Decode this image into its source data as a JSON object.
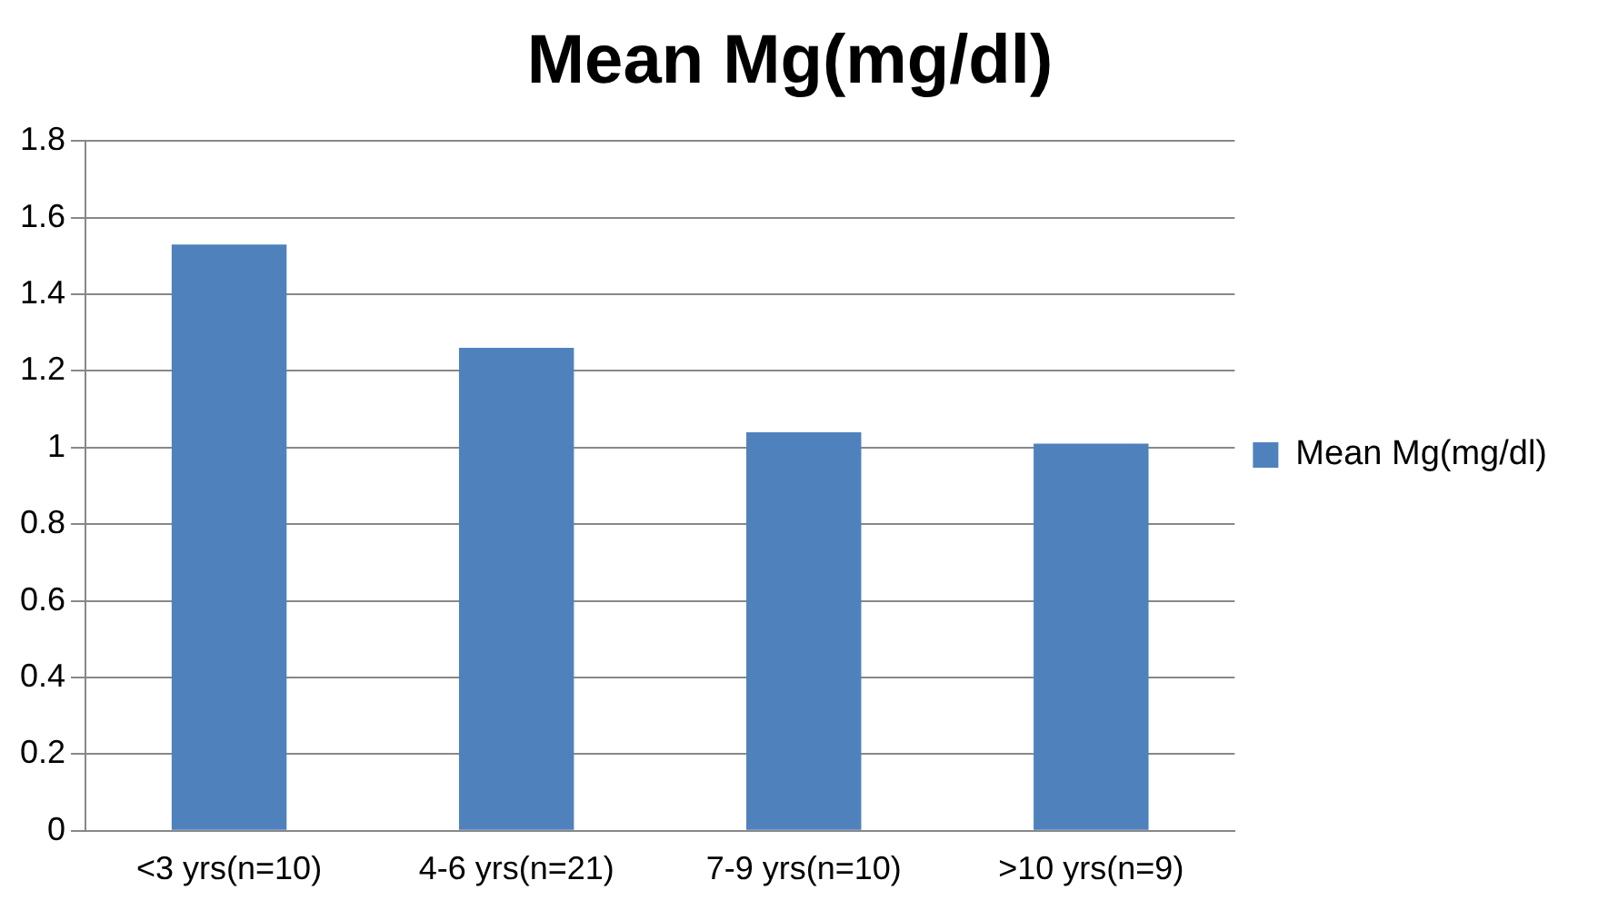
{
  "chart_data": {
    "type": "bar",
    "title": "Mean Mg(mg/dl)",
    "categories": [
      "<3 yrs(n=10)",
      "4-6 yrs(n=21)",
      "7-9 yrs(n=10)",
      ">10 yrs(n=9)"
    ],
    "series": [
      {
        "name": "Mean Mg(mg/dl)",
        "color": "#4f81bd",
        "values": [
          1.53,
          1.26,
          1.04,
          1.01
        ]
      }
    ],
    "ylim": [
      0,
      1.8
    ],
    "yticks": [
      0,
      0.2,
      0.4,
      0.6,
      0.8,
      1,
      1.2,
      1.4,
      1.6,
      1.8
    ],
    "grid": "y",
    "legend": "right"
  }
}
